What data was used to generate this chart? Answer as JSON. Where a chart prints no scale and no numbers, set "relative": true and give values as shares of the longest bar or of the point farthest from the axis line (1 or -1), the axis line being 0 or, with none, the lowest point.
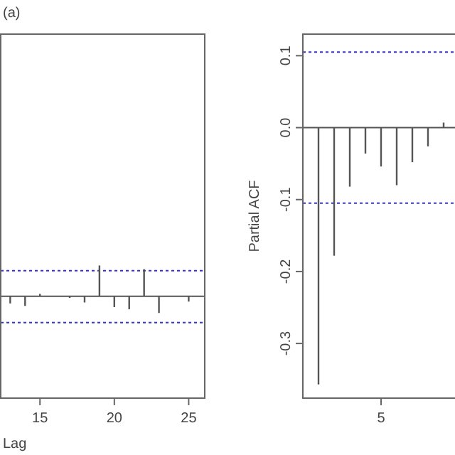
{
  "chart_data": [
    {
      "type": "bar",
      "relative": true,
      "x": [
        13,
        14,
        15,
        17,
        18,
        19,
        20,
        21,
        22,
        23,
        25
      ],
      "values": [
        -0.23,
        -0.31,
        0.08,
        -0.05,
        -0.2,
        1,
        -0.35,
        -0.42,
        0.88,
        -0.54,
        -0.17
      ],
      "color": "#555555",
      "xlim": [
        12.36,
        26.08
      ],
      "xticks": [
        15,
        20,
        25
      ],
      "xlabel": "Lag",
      "tick_labels": "x",
      "ref_lines": [
        {
          "axis": "y",
          "value": 0.83,
          "color": "#3333cc",
          "line_style": "dotted"
        },
        {
          "axis": "y",
          "value": -0.85,
          "color": "#3333cc",
          "line_style": "dotted"
        }
      ],
      "annotations": [
        "(a)"
      ]
    },
    {
      "type": "bar",
      "categories": [
        null,
        null,
        null,
        null,
        "5",
        null,
        null,
        null,
        null
      ],
      "values": [
        -0.357,
        -0.178,
        -0.082,
        -0.036,
        -0.054,
        -0.08,
        -0.048,
        -0.026,
        0.007
      ],
      "color": "#555555",
      "ylim": [
        -0.376,
        0.13
      ],
      "yticks": [
        -0.3,
        -0.2,
        -0.1,
        {
          "value": 0,
          "label": "0.0"
        },
        0.1
      ],
      "ylabel": "Partial ACF",
      "ref_lines": [
        {
          "axis": "y",
          "value": 0.105,
          "color": "#3333cc",
          "line_style": "dotted"
        },
        {
          "axis": "y",
          "value": -0.105,
          "color": "#3333cc",
          "line_style": "dotted"
        }
      ]
    }
  ]
}
